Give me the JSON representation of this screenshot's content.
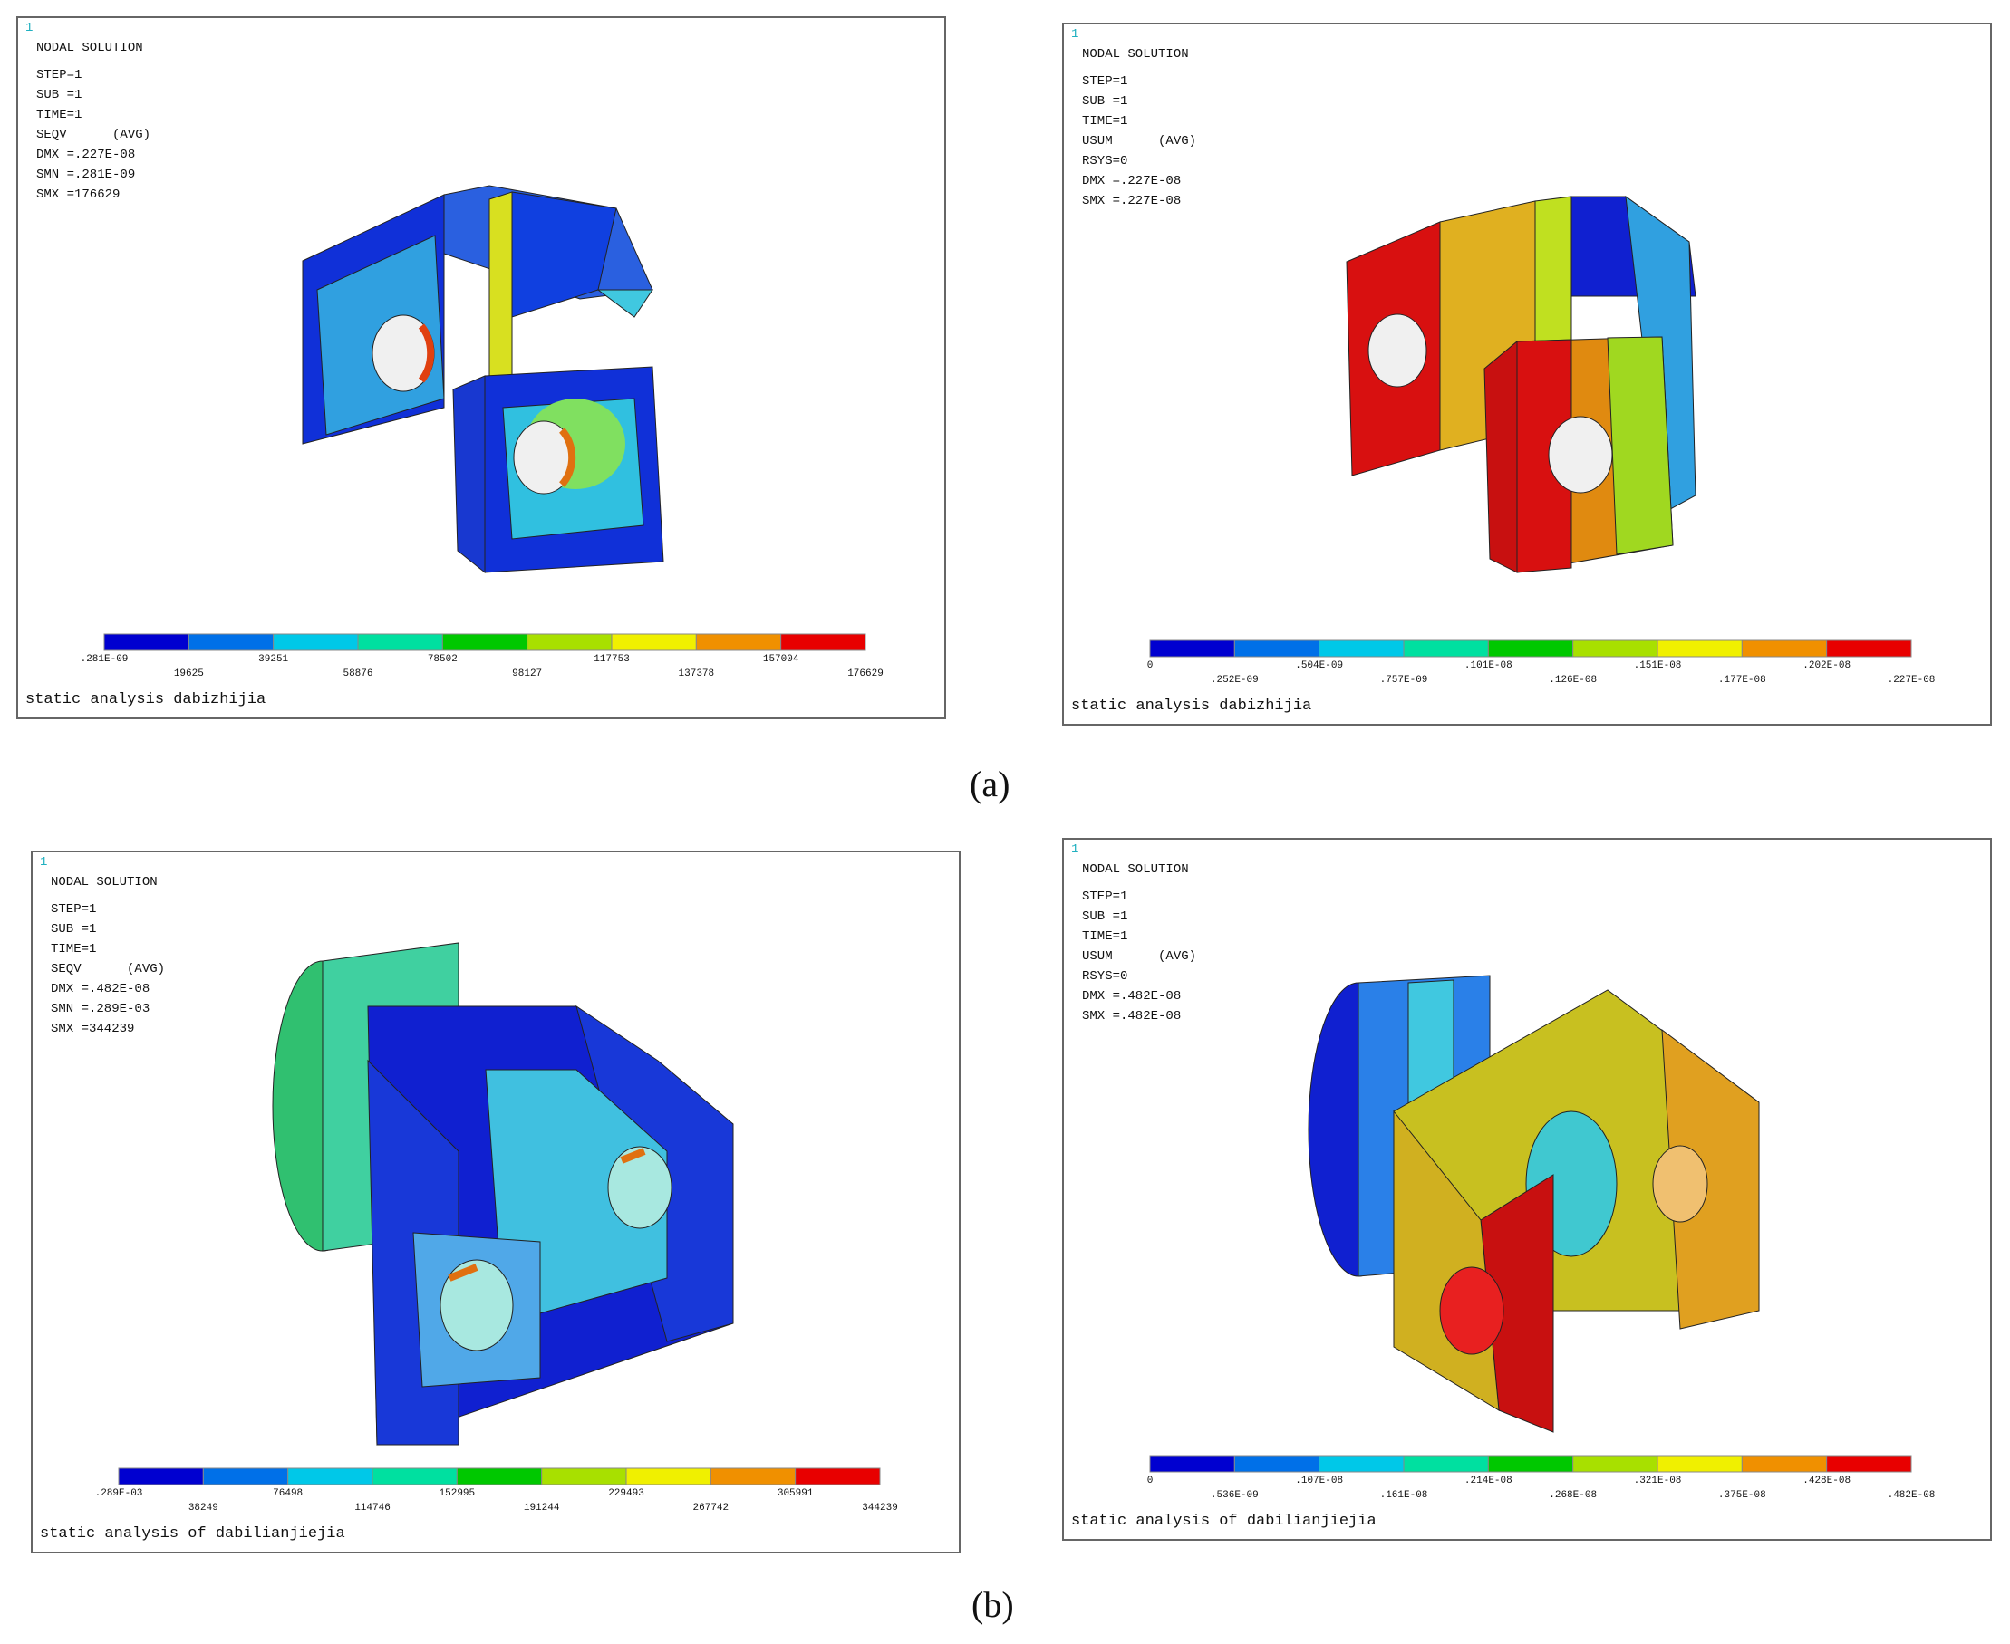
{
  "figure_a_label": "(a)",
  "figure_b_label": "(b)",
  "panels": [
    {
      "window_number": "1",
      "title": "NODAL SOLUTION",
      "info": [
        "STEP=1",
        "SUB =1",
        "TIME=1",
        "SEQV      (AVG)",
        "DMX =.227E-08",
        "SMN =.281E-09",
        "SMX =176629"
      ],
      "legend": [
        ".281E-09",
        "19625",
        "39251",
        "58876",
        "78502",
        "98127",
        "117753",
        "137378",
        "157004",
        "176629"
      ],
      "caption": "static analysis dabizhijia"
    },
    {
      "window_number": "1",
      "title": "NODAL SOLUTION",
      "info": [
        "STEP=1",
        "SUB =1",
        "TIME=1",
        "USUM      (AVG)",
        "RSYS=0",
        "DMX =.227E-08",
        "SMX =.227E-08"
      ],
      "legend": [
        "0",
        ".252E-09",
        ".504E-09",
        ".757E-09",
        ".101E-08",
        ".126E-08",
        ".151E-08",
        ".177E-08",
        ".202E-08",
        ".227E-08"
      ],
      "caption": "static analysis dabizhijia"
    },
    {
      "window_number": "1",
      "title": "NODAL SOLUTION",
      "info": [
        "STEP=1",
        "SUB =1",
        "TIME=1",
        "SEQV      (AVG)",
        "DMX =.482E-08",
        "SMN =.289E-03",
        "SMX =344239"
      ],
      "legend": [
        ".289E-03",
        "38249",
        "76498",
        "114746",
        "152995",
        "191244",
        "229493",
        "267742",
        "305991",
        "344239"
      ],
      "caption": "static analysis of dabilianjiejia"
    },
    {
      "window_number": "1",
      "title": "NODAL SOLUTION",
      "info": [
        "STEP=1",
        "SUB =1",
        "TIME=1",
        "USUM      (AVG)",
        "RSYS=0",
        "DMX =.482E-08",
        "SMX =.482E-08"
      ],
      "legend": [
        "0",
        ".536E-09",
        ".107E-08",
        ".161E-08",
        ".214E-08",
        ".268E-08",
        ".321E-08",
        ".375E-08",
        ".428E-08",
        ".482E-08"
      ],
      "caption": "static analysis of dabilianjiejia"
    }
  ]
}
